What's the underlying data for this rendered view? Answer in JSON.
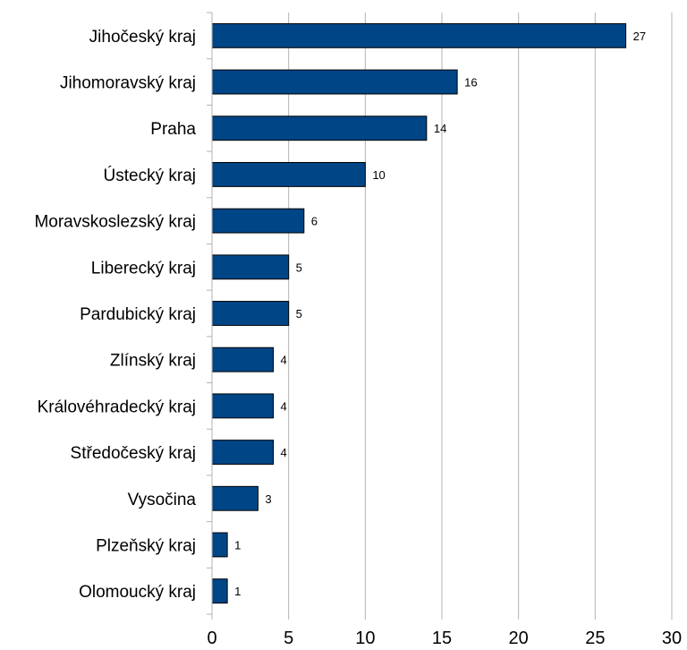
{
  "chart_data": {
    "type": "bar",
    "orientation": "horizontal",
    "categories": [
      "Jihočeský kraj",
      "Jihomoravský kraj",
      "Praha",
      "Ústecký kraj",
      "Moravskoslezský kraj",
      "Liberecký kraj",
      "Pardubický kraj",
      "Zlínský kraj",
      "Královéhradecký kraj",
      "Středočeský kraj",
      "Vysočina",
      "Plzeňský kraj",
      "Olomoucký kraj"
    ],
    "values": [
      27,
      16,
      14,
      10,
      6,
      5,
      5,
      4,
      4,
      4,
      3,
      1,
      1
    ],
    "data_labels": [
      "27",
      "16",
      "14",
      "10",
      "6",
      "5",
      "5",
      "4",
      "4",
      "4",
      "3",
      "1",
      "1"
    ],
    "x_ticks": [
      "0",
      "5",
      "10",
      "15",
      "20",
      "25",
      "30"
    ],
    "xlim": [
      0,
      30
    ],
    "title": "",
    "xlabel": "",
    "ylabel": "",
    "grid": "vertical",
    "legend": "none",
    "bar_color": "#004586",
    "bar_edge_color": "#000000",
    "grid_color": "#b3b3b3"
  }
}
